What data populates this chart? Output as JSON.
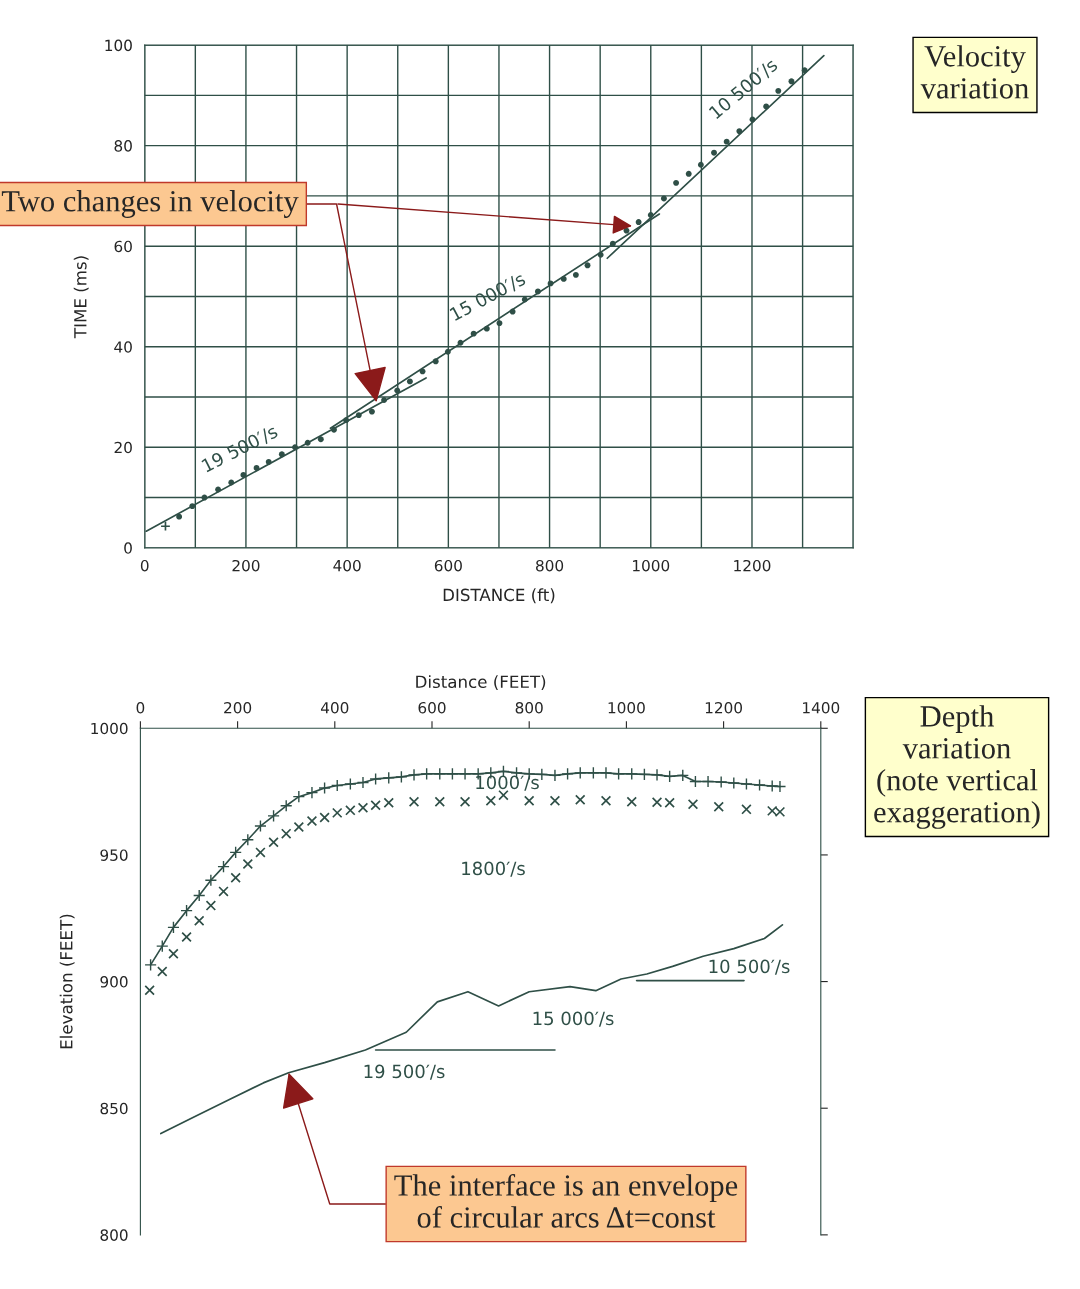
{
  "chart_data": [
    {
      "type": "scatter",
      "xlabel": "DISTANCE (ft)",
      "ylabel": "TIME (ms)",
      "xlim": [
        0,
        1400
      ],
      "ylim": [
        0,
        100
      ],
      "xticks": [
        0,
        {
          "value": 100,
          "label": null
        },
        200,
        {
          "value": 300,
          "label": null
        },
        400,
        {
          "value": 500,
          "label": null
        },
        600,
        {
          "value": 700,
          "label": null
        },
        800,
        {
          "value": 900,
          "label": null
        },
        1000,
        {
          "value": 1100,
          "label": null
        },
        1200,
        {
          "value": 1300,
          "label": null
        },
        {
          "value": 1400,
          "label": null
        }
      ],
      "yticks": [
        0,
        {
          "value": 10,
          "label": null
        },
        20,
        {
          "value": 30,
          "label": null
        },
        40,
        {
          "value": 50,
          "label": null
        },
        60,
        {
          "value": 70,
          "label": null
        },
        80,
        {
          "value": 90,
          "label": null
        },
        100
      ],
      "grid": true,
      "series": [
        {
          "marker": "cross",
          "color": "#2f4f47",
          "x": [
            41
          ],
          "values": [
            4.3
          ]
        },
        {
          "marker": "circle",
          "color": "#2f4f47",
          "x": [
            68,
            94,
            118,
            145,
            171,
            195,
            221,
            245,
            271,
            297,
            322,
            348,
            374,
            398,
            423,
            449,
            473,
            499,
            524,
            549,
            575,
            599,
            624,
            650,
            676,
            701,
            727,
            751,
            777,
            802,
            828,
            852,
            875,
            901,
            925,
            952,
            976,
            1000,
            1026,
            1050,
            1075,
            1099,
            1125,
            1150,
            1175,
            1201,
            1228,
            1252,
            1278,
            1304
          ],
          "values": [
            6.2,
            8.3,
            10,
            11.6,
            13,
            14.5,
            15.9,
            17.1,
            18.6,
            20,
            20.9,
            21.6,
            23.5,
            25.4,
            26.4,
            27.1,
            29.4,
            31.3,
            33.1,
            35.1,
            37.1,
            39,
            40.8,
            42.6,
            43.6,
            44.7,
            47,
            49.4,
            51,
            52.6,
            53.5,
            54.3,
            56.2,
            58.3,
            60.5,
            63.1,
            64.8,
            66.2,
            69.5,
            72.6,
            74.4,
            76.2,
            78.6,
            80.8,
            82.9,
            85.2,
            87.8,
            90.9,
            92.8,
            95
          ]
        },
        {
          "type": "line",
          "line_style": "solid",
          "color": "#2f4f47",
          "x": [
            3,
            556
          ],
          "values": [
            3.3,
            33.8
          ]
        },
        {
          "type": "line",
          "line_style": "solid",
          "color": "#2f4f47",
          "x": [
            367,
            1017
          ],
          "values": [
            23.8,
            66.4
          ]
        },
        {
          "type": "line",
          "line_style": "solid",
          "color": "#2f4f47",
          "x": [
            914,
            1342
          ],
          "values": [
            57.6,
            97.9
          ]
        }
      ],
      "annotations": [
        "19 500′/s",
        "15 000′/s",
        "10 500′/s",
        {
          "text": "Two changes in velocity",
          "x": 458,
          "y": 29
        },
        "Velocity\nvariation"
      ]
    },
    {
      "type": "line",
      "xlabel": "Distance (FEET)",
      "ylabel": "Elevation (FEET)",
      "xlim": [
        0,
        1400
      ],
      "ylim": [
        800,
        1000
      ],
      "xticks": [
        0,
        200,
        400,
        600,
        800,
        1000,
        1200,
        1400
      ],
      "yticks": [
        800,
        850,
        900,
        950,
        1000
      ],
      "grid": false,
      "series": [
        {
          "marker": "cross",
          "line_style": "solid",
          "color": "#2f4f47",
          "x": [
            21,
            45,
            68,
            95,
            121,
            145,
            171,
            196,
            221,
            247,
            274,
            300,
            326,
            353,
            379,
            405,
            432,
            458,
            484,
            511,
            537,
            563,
            589,
            616,
            642,
            668,
            695,
            721,
            747,
            774,
            800,
            826,
            853,
            879,
            905,
            932,
            958,
            984,
            1011,
            1037,
            1063,
            1089,
            1116,
            1142,
            1168,
            1195,
            1221,
            1247,
            1274,
            1300,
            1316
          ],
          "values": [
            906.6,
            914,
            921.4,
            928,
            934,
            940,
            945.4,
            951,
            956,
            961.4,
            965.4,
            969.4,
            973,
            974.6,
            976.4,
            977.4,
            978,
            978.6,
            980,
            980.4,
            980.8,
            981.6,
            982,
            982,
            982,
            982,
            982,
            982.4,
            983,
            982.4,
            982,
            981.8,
            981.4,
            982,
            982.4,
            982.4,
            982.4,
            982,
            982,
            981.8,
            981.6,
            981,
            981.4,
            979,
            979,
            978.8,
            978.4,
            978,
            977.6,
            977.2,
            977
          ]
        },
        {
          "type": "scatter",
          "marker": "x",
          "color": "#2f4f47",
          "x": [
            19,
            45,
            68,
            95,
            121,
            145,
            171,
            196,
            221,
            247,
            274,
            300,
            326,
            353,
            379,
            405,
            432,
            458,
            484,
            511,
            563,
            616,
            668,
            721,
            747,
            800,
            853,
            905,
            958,
            1011,
            1063,
            1089,
            1137,
            1190,
            1247,
            1300,
            1316
          ],
          "values": [
            896.6,
            904,
            911,
            917.6,
            924,
            930,
            935.6,
            941,
            946.4,
            951,
            955,
            958.4,
            961,
            963.4,
            964.8,
            966.6,
            967.6,
            968.6,
            969.6,
            970.6,
            971,
            971,
            971,
            971.4,
            973.6,
            971.4,
            971.4,
            971.8,
            971.4,
            971,
            970.8,
            970.6,
            970,
            969,
            968,
            967.4,
            967
          ]
        },
        {
          "line_style": "solid",
          "color": "#2f4f47",
          "x": [
            42,
            105,
            179,
            253,
            305,
            379,
            463,
            547,
            611,
            674,
            737,
            800,
            884,
            937,
            989,
            1042,
            1095,
            1158,
            1221,
            1284,
            1321
          ],
          "values": [
            840,
            846,
            853,
            860,
            864,
            868,
            873,
            880,
            892,
            896,
            890.4,
            896,
            898,
            896.4,
            901,
            903,
            906,
            910,
            913,
            917,
            922.4
          ]
        },
        {
          "line_style": "solid",
          "color": "#2f4f47",
          "x": [
            484,
            853
          ],
          "values": [
            873,
            873
          ]
        },
        {
          "line_style": "solid",
          "color": "#2f4f47",
          "x": [
            1021,
            1242
          ],
          "values": [
            900.4,
            900.4
          ]
        }
      ],
      "annotations": [
        "1000′/s",
        "1800′/s",
        "15 000′/s",
        "19 500′/s",
        "10 500′/s",
        {
          "text": "The interface is an envelope\nof circular arcs Δt=const",
          "x": 305,
          "y": 864
        },
        "Depth\nvariation\n(note vertical\nexaggeration)"
      ]
    }
  ]
}
